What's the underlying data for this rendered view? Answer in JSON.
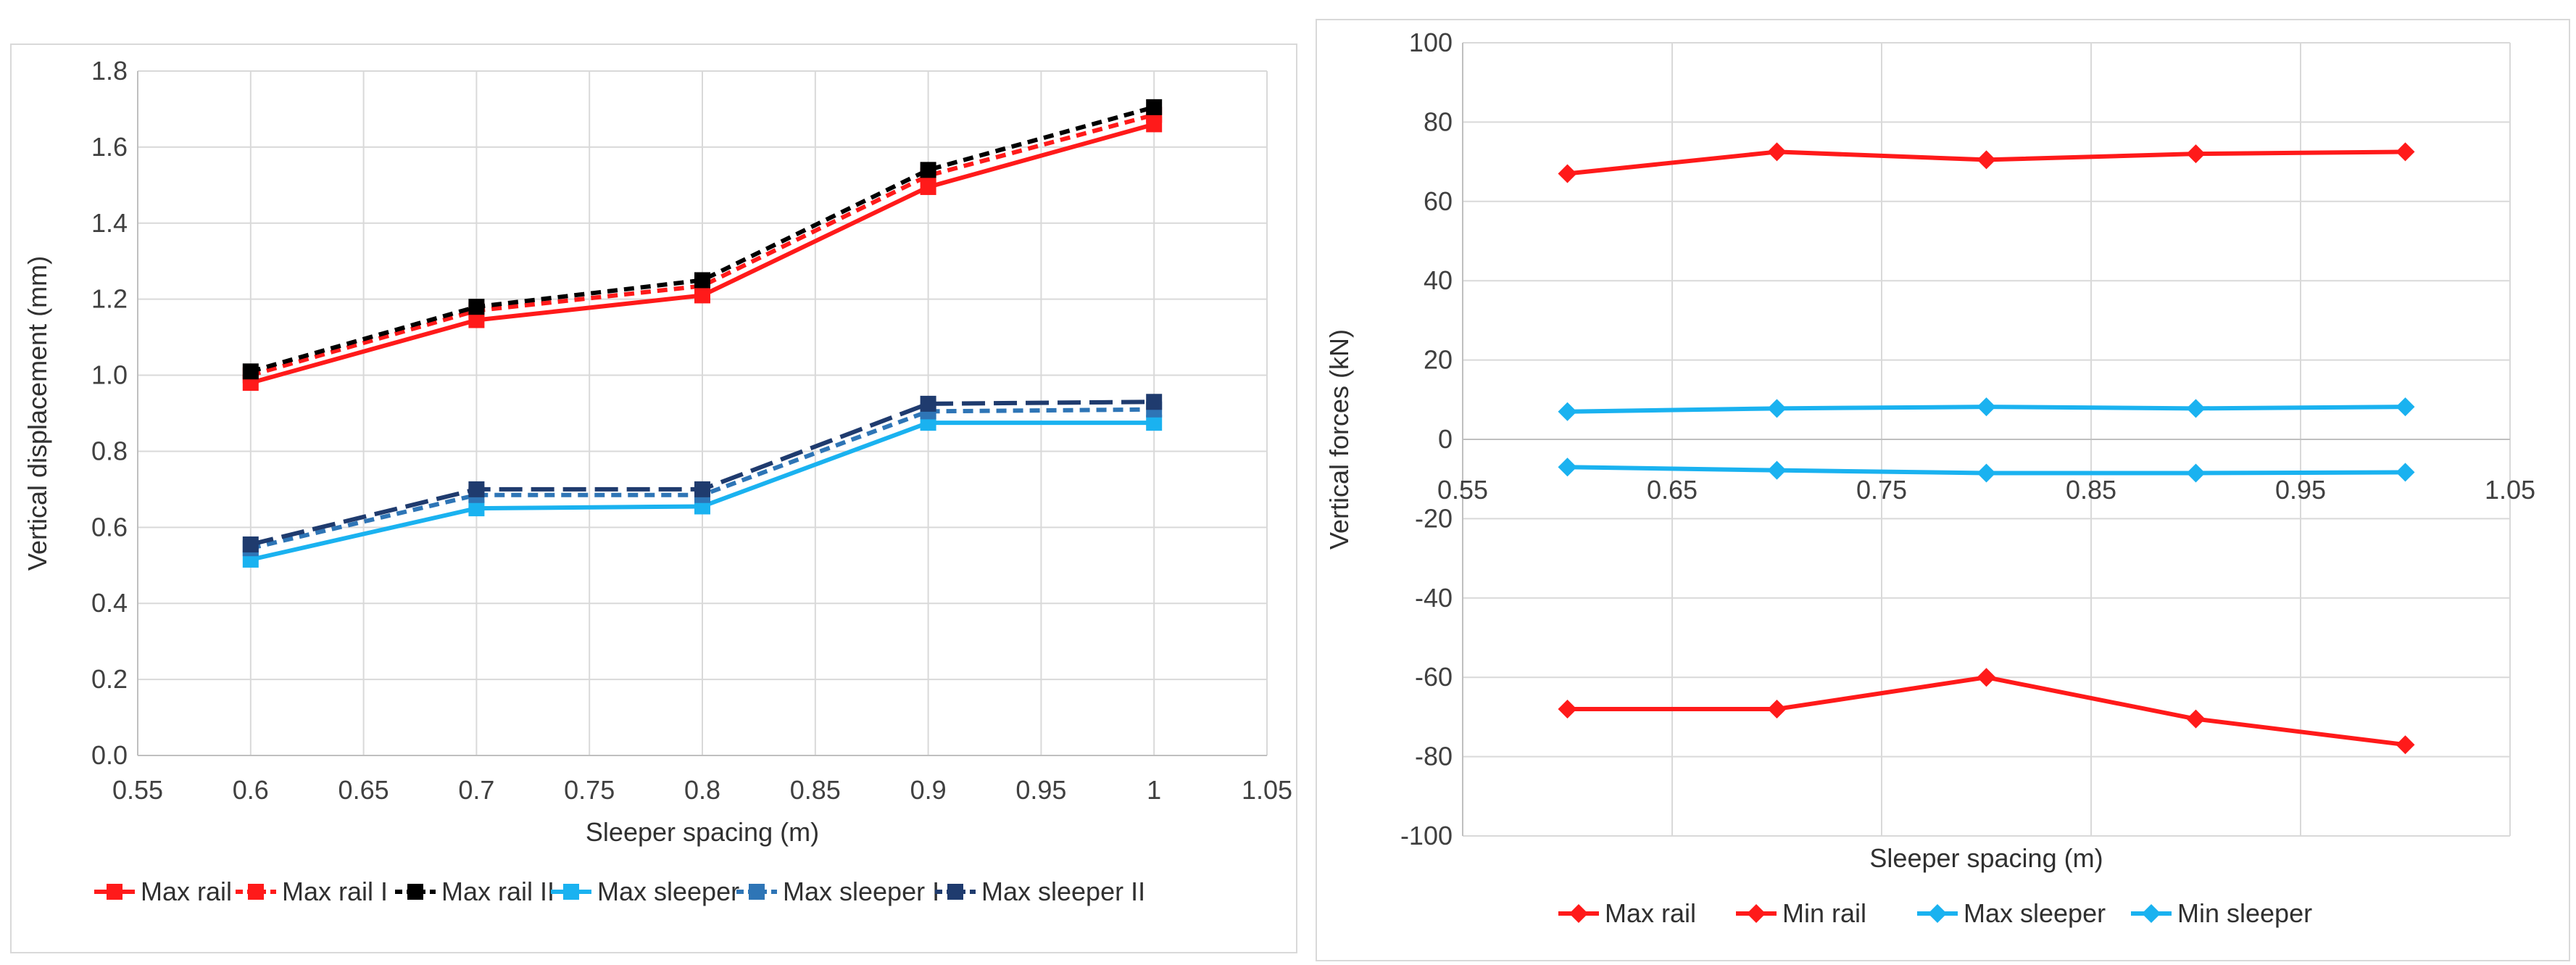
{
  "chart_data": [
    {
      "type": "line",
      "title": "",
      "xlabel": "Sleeper spacing (m)",
      "ylabel": "Vertical displacement (mm)",
      "xlim": [
        0.55,
        1.05
      ],
      "ylim": [
        0.0,
        1.8
      ],
      "x_ticks": [
        "0.55",
        "0.6",
        "0.65",
        "0.7",
        "0.75",
        "0.8",
        "0.85",
        "0.9",
        "0.95",
        "1",
        "1.05"
      ],
      "y_ticks": [
        "0.0",
        "0.2",
        "0.4",
        "0.6",
        "0.8",
        "1.0",
        "1.2",
        "1.4",
        "1.6",
        "1.8"
      ],
      "grid": true,
      "legend_position": "bottom",
      "x": [
        0.6,
        0.7,
        0.8,
        0.9,
        1.0
      ],
      "series": [
        {
          "name": "Max rail",
          "values": [
            0.98,
            1.145,
            1.21,
            1.495,
            1.66
          ],
          "color": "#ff1a1a",
          "dash": "solid",
          "marker": "square"
        },
        {
          "name": "Max rail I",
          "values": [
            1.0,
            1.17,
            1.235,
            1.525,
            1.685
          ],
          "color": "#ff1a1a",
          "dash": "dash",
          "marker": "square"
        },
        {
          "name": "Max rail II",
          "values": [
            1.01,
            1.18,
            1.25,
            1.54,
            1.705
          ],
          "color": "#000000",
          "dash": "dash",
          "marker": "square"
        },
        {
          "name": "Max sleeper",
          "values": [
            0.515,
            0.65,
            0.655,
            0.875,
            0.875
          ],
          "color": "#1ab2f0",
          "dash": "solid",
          "marker": "square"
        },
        {
          "name": "Max sleeper I",
          "values": [
            0.545,
            0.685,
            0.685,
            0.905,
            0.91
          ],
          "color": "#2e75b6",
          "dash": "dash",
          "marker": "square"
        },
        {
          "name": "Max sleeper II",
          "values": [
            0.555,
            0.7,
            0.7,
            0.925,
            0.93
          ],
          "color": "#1f3b6e",
          "dash": "longdash",
          "marker": "square"
        }
      ]
    },
    {
      "type": "line",
      "title": "",
      "xlabel": "Sleeper spacing (m)",
      "ylabel": "Vertical forces (kN)",
      "xlim": [
        0.55,
        1.05
      ],
      "ylim": [
        -100,
        100
      ],
      "x_ticks": [
        "0.55",
        "0.65",
        "0.75",
        "0.85",
        "0.95",
        "1.05"
      ],
      "y_ticks": [
        "-100",
        "-80",
        "-60",
        "-40",
        "-20",
        "0",
        "20",
        "40",
        "60",
        "80",
        "100"
      ],
      "grid": true,
      "legend_position": "bottom",
      "x": [
        0.6,
        0.7,
        0.8,
        0.9,
        1.0
      ],
      "series": [
        {
          "name": "Max rail",
          "values": [
            67,
            72.5,
            70.5,
            72,
            72.5
          ],
          "color": "#ff1a1a",
          "dash": "solid",
          "marker": "diamond"
        },
        {
          "name": "Min rail",
          "values": [
            -68,
            -68,
            -60,
            -70.5,
            -77
          ],
          "color": "#ff1a1a",
          "dash": "solid",
          "marker": "diamond"
        },
        {
          "name": "Max sleeper",
          "values": [
            7,
            7.8,
            8.2,
            7.8,
            8.2
          ],
          "color": "#1ab2f0",
          "dash": "solid",
          "marker": "diamond"
        },
        {
          "name": "Min sleeper",
          "values": [
            -7,
            -7.8,
            -8.5,
            -8.5,
            -8.3
          ],
          "color": "#1ab2f0",
          "dash": "solid",
          "marker": "diamond"
        }
      ]
    }
  ]
}
